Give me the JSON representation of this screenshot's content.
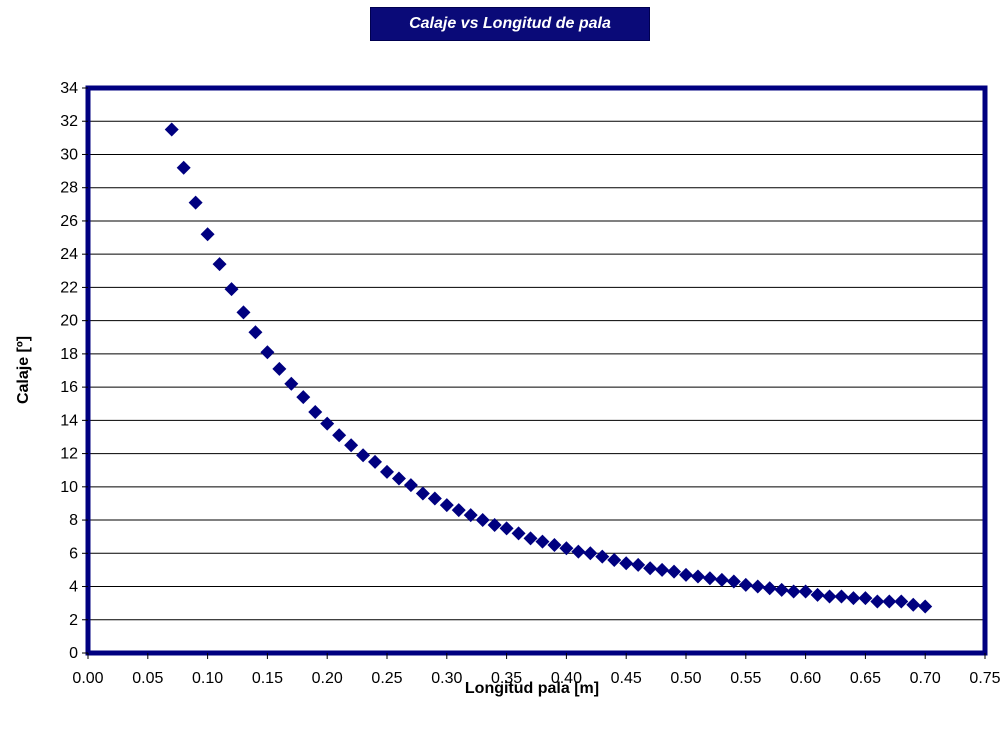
{
  "chart_data": {
    "type": "scatter",
    "title": "Calaje vs Longitud de pala",
    "xlabel": "Longitud pala  [m]",
    "ylabel": "Calaje [º]",
    "xlim": [
      0,
      0.75
    ],
    "ylim": [
      0,
      34
    ],
    "x_ticks": [
      "0.00",
      "0.05",
      "0.10",
      "0.15",
      "0.20",
      "0.25",
      "0.30",
      "0.35",
      "0.40",
      "0.45",
      "0.50",
      "0.55",
      "0.60",
      "0.65",
      "0.70",
      "0.75"
    ],
    "y_ticks": [
      "0",
      "2",
      "4",
      "6",
      "8",
      "10",
      "12",
      "14",
      "16",
      "18",
      "20",
      "22",
      "24",
      "26",
      "28",
      "30",
      "32",
      "34"
    ],
    "grid": "horizontal",
    "legend": "none",
    "colors": {
      "marker": "#000080",
      "frame": "#000080",
      "title_bg": "#0a0a78"
    },
    "series": [
      {
        "x": [
          0.07,
          0.08,
          0.09,
          0.1,
          0.11,
          0.12,
          0.13,
          0.14,
          0.15,
          0.16,
          0.17,
          0.18,
          0.19,
          0.2,
          0.21,
          0.22,
          0.23,
          0.24,
          0.25,
          0.26,
          0.27,
          0.28,
          0.29,
          0.3,
          0.31,
          0.32,
          0.33,
          0.34,
          0.35,
          0.36,
          0.37,
          0.38,
          0.39,
          0.4,
          0.41,
          0.42,
          0.43,
          0.44,
          0.45,
          0.46,
          0.47,
          0.48,
          0.49,
          0.5,
          0.51,
          0.52,
          0.53,
          0.54,
          0.55,
          0.56,
          0.57,
          0.58,
          0.59,
          0.6,
          0.61,
          0.62,
          0.63,
          0.64,
          0.65,
          0.66,
          0.67,
          0.68,
          0.69,
          0.7
        ],
        "y": [
          31.5,
          29.2,
          27.1,
          25.2,
          23.4,
          21.9,
          20.5,
          19.3,
          18.1,
          17.1,
          16.2,
          15.4,
          14.5,
          13.8,
          13.1,
          12.5,
          11.9,
          11.5,
          10.9,
          10.5,
          10.1,
          9.6,
          9.3,
          8.9,
          8.6,
          8.3,
          8.0,
          7.7,
          7.5,
          7.2,
          6.9,
          6.7,
          6.5,
          6.3,
          6.1,
          6.0,
          5.8,
          5.6,
          5.4,
          5.3,
          5.1,
          5.0,
          4.9,
          4.7,
          4.6,
          4.5,
          4.4,
          4.3,
          4.1,
          4.0,
          3.9,
          3.8,
          3.7,
          3.7,
          3.5,
          3.4,
          3.4,
          3.3,
          3.3,
          3.1,
          3.1,
          3.1,
          2.9,
          2.8
        ]
      }
    ]
  }
}
